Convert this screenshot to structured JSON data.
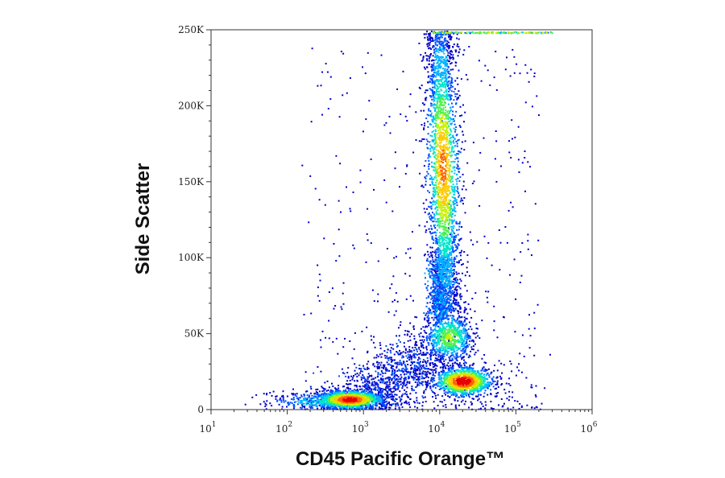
{
  "chart_data": {
    "type": "scatter",
    "title": "",
    "xlabel": "CD45 Pacific Orange™",
    "ylabel": "Side Scatter",
    "x_scale": "log",
    "xlim": [
      10,
      1000000
    ],
    "ylim": [
      0,
      250000
    ],
    "x_ticks": [
      {
        "value": 10,
        "base": "10",
        "exp": "1"
      },
      {
        "value": 100,
        "base": "10",
        "exp": "2"
      },
      {
        "value": 1000,
        "base": "10",
        "exp": "3"
      },
      {
        "value": 10000,
        "base": "10",
        "exp": "4"
      },
      {
        "value": 100000,
        "base": "10",
        "exp": "5"
      },
      {
        "value": 1000000,
        "base": "10",
        "exp": "6"
      }
    ],
    "y_ticks": [
      {
        "value": 0,
        "label": "0"
      },
      {
        "value": 50000,
        "label": "50K"
      },
      {
        "value": 100000,
        "label": "100K"
      },
      {
        "value": 150000,
        "label": "150K"
      },
      {
        "value": 200000,
        "label": "200K"
      },
      {
        "value": 250000,
        "label": "250K"
      }
    ],
    "grid": false,
    "colormap": [
      "#0000c8",
      "#0050ff",
      "#00b4ff",
      "#00e6c8",
      "#50f050",
      "#c8f000",
      "#ffc800",
      "#ff6400",
      "#e60000"
    ],
    "populations": [
      {
        "x": 650,
        "y": 7000,
        "count": 5
      },
      {
        "x": 20000,
        "y": 19000,
        "count": 5
      },
      {
        "x": 13000,
        "y": 48000,
        "count": 5
      },
      {
        "x": 11000,
        "y": 160000,
        "count": 5
      }
    ]
  }
}
